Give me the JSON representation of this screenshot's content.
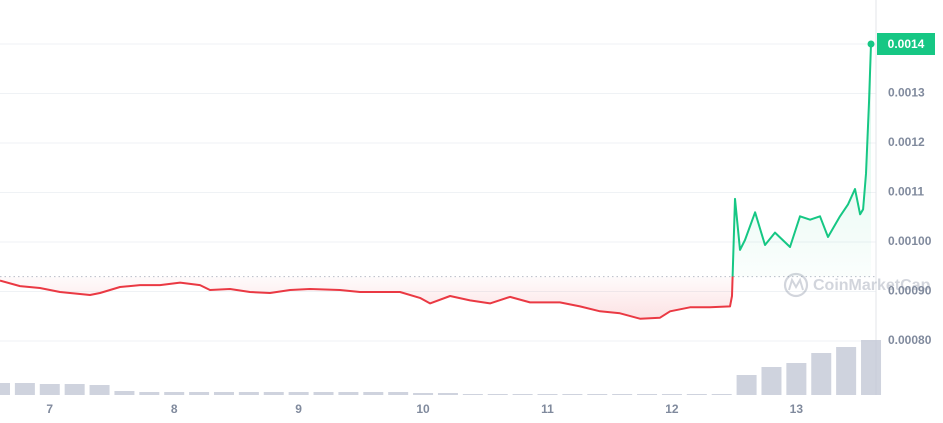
{
  "chart_data": {
    "type": "line",
    "x": [
      6.6,
      6.761,
      6.921,
      7.082,
      7.323,
      7.404,
      7.564,
      7.725,
      7.886,
      8.047,
      8.207,
      8.288,
      8.448,
      8.609,
      8.77,
      8.931,
      9.091,
      9.332,
      9.493,
      9.654,
      9.815,
      9.975,
      10.056,
      10.217,
      10.377,
      10.538,
      10.699,
      10.859,
      11.1,
      11.261,
      11.422,
      11.583,
      11.743,
      11.904,
      11.985,
      12.145,
      12.306,
      12.467,
      12.483,
      12.507,
      12.547,
      12.587,
      12.668,
      12.748,
      12.828,
      12.949,
      13.029,
      13.11,
      13.19,
      13.254,
      13.351,
      13.415,
      13.471,
      13.512,
      13.536,
      13.56,
      13.584,
      13.6
    ],
    "series": [
      {
        "values": [
          0.000922,
          0.000911,
          0.000907,
          0.000899,
          0.000893,
          0.000897,
          0.000909,
          0.000913,
          0.000913,
          0.000918,
          0.000913,
          0.000903,
          0.000905,
          0.000899,
          0.000897,
          0.000903,
          0.000905,
          0.000903,
          0.000899,
          0.000899,
          0.000899,
          0.000887,
          0.000876,
          0.000891,
          0.000882,
          0.000876,
          0.000889,
          0.000878,
          0.000878,
          0.00087,
          0.00086,
          0.000856,
          0.000845,
          0.000847,
          0.00086,
          0.000868,
          0.000868,
          0.00087,
          0.000891,
          0.001087,
          0.000984,
          0.001004,
          0.00106,
          0.000994,
          0.001019,
          0.00099,
          0.001052,
          0.001045,
          0.001052,
          0.00101,
          0.001052,
          0.001076,
          0.001107,
          0.001056,
          0.001066,
          0.001138,
          0.001282,
          0.0014
        ]
      }
    ],
    "baseline": 0.00093,
    "colors": {
      "up": "#16c784",
      "down": "#ea3943"
    },
    "current_price": 0.0014,
    "watermark": "CoinMarketCap",
    "xlim": [
      6.6,
      13.64
    ],
    "xticks": [
      7,
      8,
      9,
      10,
      11,
      12,
      13
    ],
    "ylim": [
      0.0007,
      0.0015
    ],
    "yticks": [
      {
        "value": 0.0008,
        "label": "0.00080"
      },
      {
        "value": 0.0009,
        "label": "0.00090"
      },
      {
        "value": 0.001,
        "label": "0.00100"
      },
      0.0011,
      0.0012,
      0.0013,
      0.0014
    ],
    "grid": true,
    "volume": {
      "color": "#c3c8d6",
      "ylim": [
        0,
        100
      ],
      "x": [
        6.6,
        6.8,
        7.0,
        7.2,
        7.4,
        7.6,
        7.8,
        8.0,
        8.2,
        8.4,
        8.6,
        8.8,
        9.0,
        9.2,
        9.4,
        9.6,
        9.8,
        10.0,
        10.2,
        10.4,
        10.6,
        10.8,
        11.0,
        11.2,
        11.4,
        11.6,
        11.8,
        12.0,
        12.2,
        12.4,
        12.6,
        12.8,
        13.0,
        13.2,
        13.4,
        13.6
      ],
      "values": [
        12,
        12,
        11,
        11,
        10,
        4,
        3,
        3,
        3,
        3,
        3,
        3,
        3,
        3,
        3,
        3,
        3,
        2,
        2,
        1,
        1,
        1,
        1,
        1,
        1,
        1,
        1,
        1,
        1,
        1,
        20,
        28,
        32,
        42,
        48,
        55
      ]
    }
  }
}
